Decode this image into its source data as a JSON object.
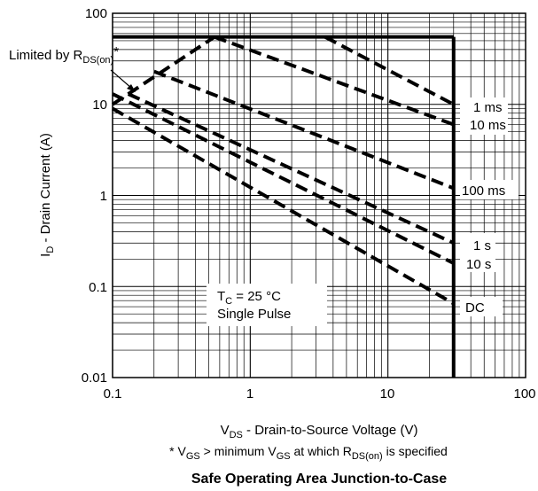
{
  "chart_data": {
    "type": "line",
    "x_scale": "log",
    "y_scale": "log",
    "xlim": [
      0.1,
      100
    ],
    "ylim": [
      0.01,
      100
    ],
    "x_ticks": [
      "0.1",
      "1",
      "10",
      "100"
    ],
    "y_ticks": [
      "0.01",
      "0.1",
      "1",
      "10",
      "100"
    ],
    "grid": true,
    "xlabel": {
      "main": "V",
      "sub": "DS",
      "rest": " - Drain-to-Source Voltage (V)"
    },
    "ylabel": {
      "main": "I",
      "sub": "D",
      "rest": "  - Drain Current (A)"
    },
    "footnote": {
      "p1": "* V",
      "s1": "GS",
      "p2": " > minimum V",
      "s2": "GS",
      "p3": " at which R",
      "s3": "DS(on)",
      "p4": " is specified"
    },
    "caption": "Safe Operating Area Junction-to-Case",
    "annotation_rds": {
      "p1": "Limited by R",
      "s1": "DS(on)",
      "p2": "*"
    },
    "annotation_conditions": {
      "line1_main": "T",
      "line1_sub": "C",
      "line1_rest": " = 25 °C",
      "line2": "Single Pulse"
    },
    "limits": {
      "current_max_A": 55,
      "voltage_max_V": 30
    },
    "series": [
      {
        "name": "1 ms",
        "points": [
          [
            3.5,
            55
          ],
          [
            30,
            10
          ]
        ]
      },
      {
        "name": "10 ms",
        "points": [
          [
            0.55,
            55
          ],
          [
            30,
            6
          ]
        ]
      },
      {
        "name": "100 ms",
        "points": [
          [
            0.2,
            23
          ],
          [
            30,
            1.2
          ]
        ]
      },
      {
        "name": "1 s",
        "points": [
          [
            0.13,
            13
          ],
          [
            30,
            0.3
          ]
        ]
      },
      {
        "name": "10 s",
        "points": [
          [
            0.1,
            13
          ],
          [
            30,
            0.18
          ]
        ]
      },
      {
        "name": "DC",
        "points": [
          [
            0.1,
            9
          ],
          [
            30,
            0.065
          ]
        ]
      }
    ],
    "rds_limit_line": {
      "points": [
        [
          0.1,
          10
        ],
        [
          0.55,
          55
        ]
      ]
    }
  }
}
